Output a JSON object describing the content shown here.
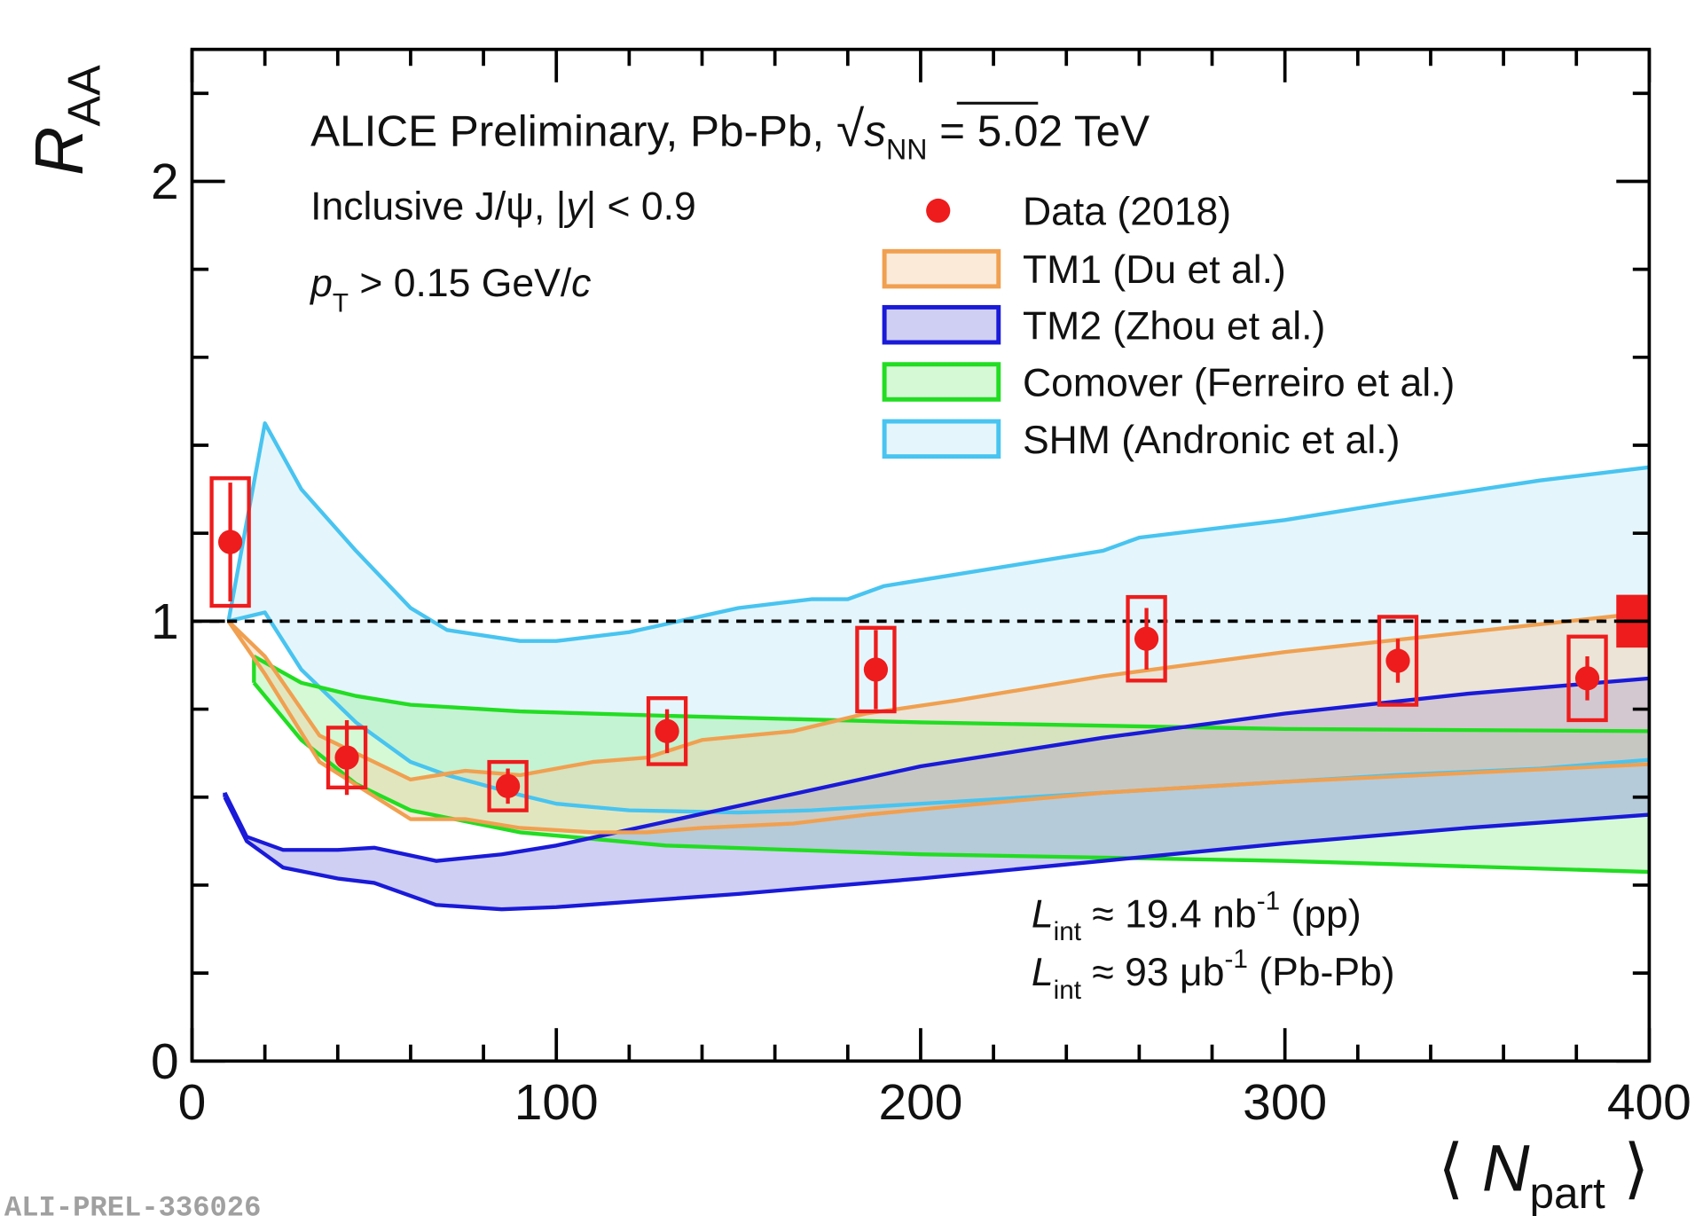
{
  "chart_data": {
    "type": "scatter",
    "title_parts": [
      "ALICE Preliminary, Pb-Pb, ",
      "√",
      "s",
      "NN",
      " = 5.02 TeV"
    ],
    "selection_parts": [
      "Inclusive J/ψ, |",
      "y",
      "| < 0.9"
    ],
    "pt_parts": [
      "p",
      "T",
      " > 0.15 GeV/",
      "c"
    ],
    "lumi_pp_parts": [
      "L",
      "int",
      " ≈ 19.4 nb",
      "-1",
      " (pp)"
    ],
    "lumi_pbpb_parts": [
      "L",
      "int",
      " ≈ 93 μb",
      "-1",
      " (Pb-Pb)"
    ],
    "ylabel_parts": [
      "R",
      "AA"
    ],
    "xlabel_parts": [
      "⟨ ",
      "N",
      "part",
      " ⟩"
    ],
    "watermark": "ALI-PREL-336026",
    "xlim": [
      0,
      400
    ],
    "ylim": [
      0,
      2.3
    ],
    "xticks": [
      0,
      100,
      200,
      300,
      400
    ],
    "yticks": [
      0,
      1,
      2
    ],
    "xminor": [
      20,
      40,
      60,
      80,
      120,
      140,
      160,
      180,
      220,
      240,
      260,
      280,
      320,
      340,
      360,
      380
    ],
    "yminor": [
      0.2,
      0.4,
      0.6,
      0.8,
      1.2,
      1.4,
      1.6,
      1.8,
      2.2
    ],
    "reference_line": 1,
    "series": [
      {
        "name": "Data (2018)",
        "type": "points",
        "color": "#ee1c1c",
        "x": [
          10.5,
          42.5,
          86.7,
          130.4,
          187.7,
          262,
          331,
          383
        ],
        "values": [
          1.18,
          0.69,
          0.625,
          0.75,
          0.89,
          0.96,
          0.91,
          0.87
        ],
        "stat_err": [
          0.135,
          0.085,
          0.04,
          0.05,
          0.09,
          0.07,
          0.05,
          0.05
        ],
        "syst_err": [
          0.145,
          0.068,
          0.055,
          0.075,
          0.095,
          0.095,
          0.1,
          0.095
        ]
      },
      {
        "name": "TM1 (Du et al.)",
        "type": "band",
        "color": "#f0a050",
        "fill": "#f7c89a",
        "x": [
          10,
          20,
          35,
          60,
          75,
          90,
          110,
          125,
          140,
          165,
          185,
          210,
          250,
          300,
          350,
          400
        ],
        "upper": [
          1.0,
          0.92,
          0.74,
          0.64,
          0.66,
          0.65,
          0.68,
          0.69,
          0.73,
          0.75,
          0.79,
          0.82,
          0.875,
          0.93,
          0.975,
          1.02
        ],
        "lower": [
          1.0,
          0.88,
          0.68,
          0.55,
          0.55,
          0.53,
          0.52,
          0.52,
          0.53,
          0.54,
          0.56,
          0.58,
          0.61,
          0.635,
          0.655,
          0.675
        ]
      },
      {
        "name": "TM2 (Zhou et al.)",
        "type": "band",
        "color": "#1a1ad8",
        "fill": "#8080e0",
        "x": [
          9,
          15,
          25,
          40,
          50,
          67,
          85,
          100,
          150,
          200,
          250,
          300,
          350,
          400
        ],
        "upper": [
          0.61,
          0.51,
          0.48,
          0.48,
          0.485,
          0.455,
          0.47,
          0.49,
          0.58,
          0.67,
          0.735,
          0.79,
          0.835,
          0.87
        ],
        "lower": [
          0.6,
          0.5,
          0.44,
          0.415,
          0.405,
          0.355,
          0.345,
          0.35,
          0.38,
          0.415,
          0.455,
          0.495,
          0.53,
          0.56
        ]
      },
      {
        "name": "Comover (Ferreiro et al.)",
        "type": "band",
        "color": "#22dd22",
        "fill": "#90f090",
        "x": [
          17,
          30,
          45,
          60,
          90,
          130,
          200,
          300,
          400
        ],
        "upper": [
          0.92,
          0.86,
          0.83,
          0.81,
          0.795,
          0.785,
          0.77,
          0.755,
          0.75
        ],
        "lower": [
          0.86,
          0.73,
          0.63,
          0.57,
          0.52,
          0.49,
          0.47,
          0.455,
          0.43
        ]
      },
      {
        "name": "SHM (Andronic et al.)",
        "type": "band",
        "color": "#48c4f0",
        "fill": "#b8e8f6",
        "x": [
          10,
          20,
          30,
          45,
          60,
          70,
          90,
          100,
          120,
          150,
          170,
          180,
          190,
          220,
          250,
          260,
          300,
          330,
          370,
          400
        ],
        "upper": [
          1.0,
          1.45,
          1.3,
          1.16,
          1.03,
          0.98,
          0.955,
          0.955,
          0.975,
          1.03,
          1.05,
          1.05,
          1.08,
          1.12,
          1.16,
          1.19,
          1.23,
          1.27,
          1.32,
          1.35
        ],
        "lower": [
          1.0,
          1.02,
          0.89,
          0.77,
          0.68,
          0.65,
          0.605,
          0.585,
          0.57,
          0.565,
          0.57,
          0.575,
          0.58,
          0.595,
          0.61,
          0.615,
          0.635,
          0.65,
          0.665,
          0.685
        ]
      }
    ],
    "global_uncertainty": {
      "x": 400,
      "value": 1,
      "error": 0.06
    }
  }
}
